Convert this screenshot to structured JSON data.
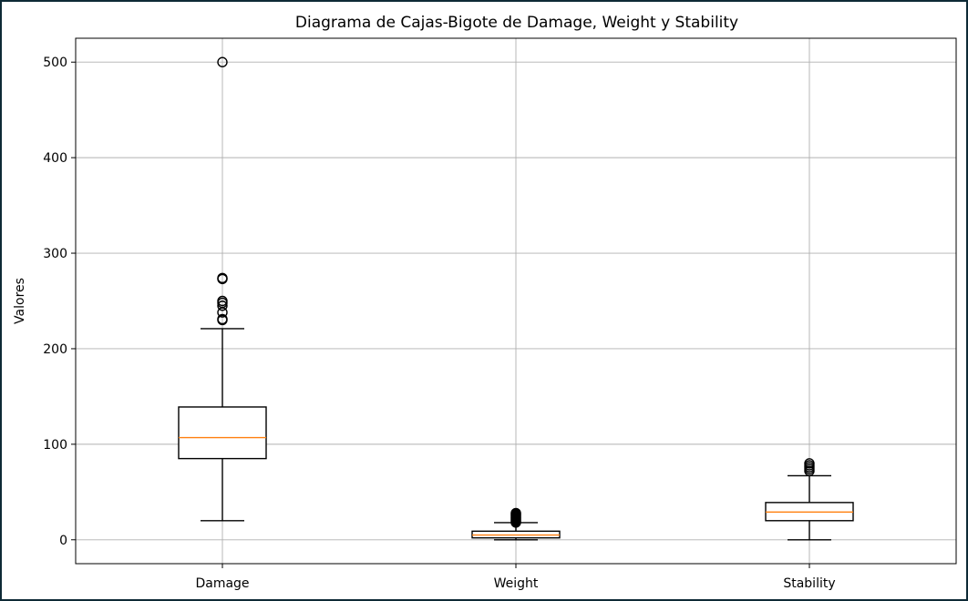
{
  "chart_data": {
    "type": "box",
    "title": "Diagrama de Cajas-Bigote de Damage, Weight y Stability",
    "xlabel": "",
    "ylabel": "Valores",
    "categories": [
      "Damage",
      "Weight",
      "Stability"
    ],
    "ylim": [
      -25,
      525
    ],
    "yticks": [
      0,
      100,
      200,
      300,
      400,
      500
    ],
    "grid": true,
    "colors": {
      "box": "#000000",
      "median": "#ff7f0e",
      "grid": "#b0b0b0"
    },
    "boxes": [
      {
        "name": "Damage",
        "whisker_low": 20,
        "q1": 85,
        "median": 107,
        "q3": 139,
        "whisker_high": 221,
        "outliers": [
          230,
          231,
          238,
          245,
          248,
          250,
          273,
          274,
          500
        ]
      },
      {
        "name": "Weight",
        "whisker_low": 0,
        "q1": 2,
        "median": 5,
        "q3": 9,
        "whisker_high": 18,
        "outliers": [
          18,
          19,
          20,
          21,
          22,
          23,
          24,
          25,
          26,
          27,
          28
        ]
      },
      {
        "name": "Stability",
        "whisker_low": 0,
        "q1": 20,
        "median": 29,
        "q3": 39,
        "whisker_high": 67,
        "outliers": [
          72,
          74,
          76,
          78,
          80
        ]
      }
    ]
  }
}
